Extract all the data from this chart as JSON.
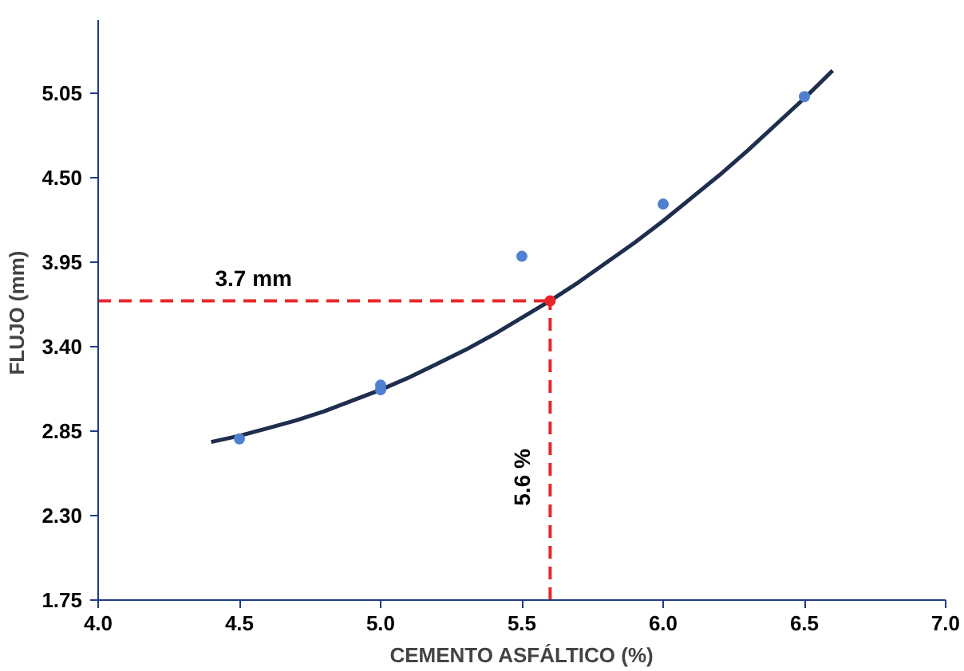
{
  "chart_data": {
    "type": "scatter",
    "xlabel": "CEMENTO ASFÁLTICO (%)",
    "ylabel": "FLUJO  (mm)",
    "xlim": [
      4.0,
      7.0
    ],
    "xticks": [
      {
        "value": 4.0,
        "label": "4.0"
      },
      {
        "value": 4.5,
        "label": "4.5"
      },
      {
        "value": 5.0,
        "label": "5.0"
      },
      {
        "value": 5.5,
        "label": "5.5"
      },
      {
        "value": 6.0,
        "label": "6.0"
      },
      {
        "value": 6.5,
        "label": "6.5"
      },
      {
        "value": 7.0,
        "label": "7.0"
      }
    ],
    "ylim": [
      1.75,
      5.53
    ],
    "yticks": [
      1.75,
      {
        "value": 2.3,
        "label": "2.30"
      },
      2.85,
      {
        "value": 3.4,
        "label": "3.40"
      },
      3.95,
      {
        "value": 4.5,
        "label": "4.50"
      },
      5.05
    ],
    "grid": false,
    "series": [
      {
        "type": "line",
        "color": "#1f2d4e",
        "line_style": "solid",
        "marker": "none",
        "x": [
          4.4,
          4.5,
          4.6,
          4.7,
          4.8,
          4.9,
          5.0,
          5.1,
          5.2,
          5.3,
          5.4,
          5.5,
          5.6,
          5.7,
          5.8,
          5.9,
          6.0,
          6.1,
          6.2,
          6.3,
          6.4,
          6.5,
          6.6
        ],
        "values": [
          2.78,
          2.82,
          2.87,
          2.92,
          2.98,
          3.05,
          3.12,
          3.2,
          3.29,
          3.38,
          3.48,
          3.59,
          3.7,
          3.82,
          3.95,
          4.08,
          4.22,
          4.37,
          4.52,
          4.68,
          4.85,
          5.02,
          5.2
        ]
      },
      {
        "color": "#4f81d0",
        "marker": "circle",
        "x": [
          4.5,
          5.0,
          5.0,
          5.5,
          6.0,
          6.5
        ],
        "values": [
          2.8,
          3.15,
          3.12,
          3.99,
          4.33,
          5.03
        ]
      },
      {
        "type": "line",
        "color": "#e8262a",
        "line_style": "dashed",
        "marker": "none",
        "x": [
          4.0,
          5.6
        ],
        "values": [
          3.7,
          3.7
        ]
      },
      {
        "type": "line",
        "color": "#e8262a",
        "line_style": "dashed",
        "marker": "none",
        "x": [
          5.6,
          5.6
        ],
        "values": [
          1.75,
          3.7
        ]
      },
      {
        "color": "#e8262a",
        "marker": "circle",
        "x": [
          5.6
        ],
        "values": [
          3.7
        ]
      }
    ],
    "annotations": [
      "3.7 mm",
      "5.6 %"
    ]
  }
}
